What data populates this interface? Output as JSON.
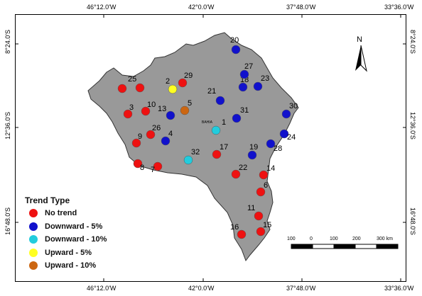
{
  "map": {
    "top_lon_labels": [
      "46°12.0'W",
      "42°0.0'W",
      "37°48.0'W",
      "33°36.0'W"
    ],
    "bottom_lon_labels": [
      "46°12.0'W",
      "42°0.0'W",
      "37°48.0'W",
      "33°36.0'W"
    ],
    "left_lat_labels": [
      "8°24.0'S",
      "12°36.0'S",
      "16°48.0'S"
    ],
    "right_lat_labels": [
      "8°24.0'S",
      "12°36.0'S",
      "16°48.0'S"
    ],
    "region_label": "BAHIA",
    "state_fill": "#999999"
  },
  "legend": {
    "title": "Trend Type",
    "items": [
      {
        "label": "No trend",
        "color": "#ee1111"
      },
      {
        "label": "Downward - 5%",
        "color": "#1111cc"
      },
      {
        "label": "Downward - 10%",
        "color": "#22ccdd"
      },
      {
        "label": "Upward - 5%",
        "color": "#ffff22"
      },
      {
        "label": "Upward - 10%",
        "color": "#cc6611"
      }
    ]
  },
  "stations": [
    {
      "id": "1",
      "trend": "Downward - 10%"
    },
    {
      "id": "2",
      "trend": "Upward - 5%"
    },
    {
      "id": "3",
      "trend": "No trend"
    },
    {
      "id": "4",
      "trend": "Downward - 5%"
    },
    {
      "id": "5",
      "trend": "Upward - 10%"
    },
    {
      "id": "6",
      "trend": "No trend"
    },
    {
      "id": "7",
      "trend": "No trend"
    },
    {
      "id": "8",
      "trend": "No trend"
    },
    {
      "id": "9",
      "trend": "No trend"
    },
    {
      "id": "10",
      "trend": "No trend"
    },
    {
      "id": "11",
      "trend": "No trend"
    },
    {
      "id": "13",
      "trend": "Downward - 5%"
    },
    {
      "id": "14",
      "trend": "No trend"
    },
    {
      "id": "15",
      "trend": "No trend"
    },
    {
      "id": "16",
      "trend": "No trend"
    },
    {
      "id": "17",
      "trend": "No trend"
    },
    {
      "id": "18",
      "trend": "Downward - 5%"
    },
    {
      "id": "19",
      "trend": "Downward - 5%"
    },
    {
      "id": "20",
      "trend": "Downward - 5%"
    },
    {
      "id": "21",
      "trend": "Downward - 5%"
    },
    {
      "id": "22",
      "trend": "No trend"
    },
    {
      "id": "23",
      "trend": "Downward - 5%"
    },
    {
      "id": "24",
      "trend": "Downward - 5%"
    },
    {
      "id": "25",
      "trend": "No trend"
    },
    {
      "id": "26",
      "trend": "No trend"
    },
    {
      "id": "27",
      "trend": "Downward - 5%"
    },
    {
      "id": "28",
      "trend": "Downward - 5%"
    },
    {
      "id": "29",
      "trend": "No trend"
    },
    {
      "id": "30",
      "trend": "Downward - 5%"
    },
    {
      "id": "31",
      "trend": "Downward - 5%"
    },
    {
      "id": "32",
      "trend": "Downward - 10%"
    },
    {
      "id": "",
      "trend": "No trend"
    }
  ],
  "scale_bar": {
    "labels": [
      "100",
      "0",
      "100",
      "200",
      "300 km"
    ]
  },
  "north_arrow": {
    "label": "N",
    "icon": "north-arrow-icon"
  }
}
